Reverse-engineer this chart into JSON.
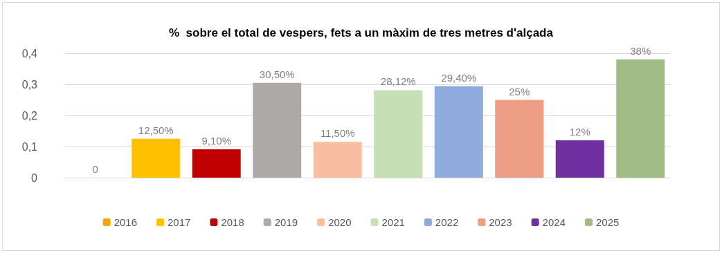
{
  "chart_data": {
    "type": "bar",
    "title": "%  sobre el total de vespers, fets a un màxim de tres metres d'alçada",
    "categories": [
      null,
      null,
      null,
      null,
      null,
      null,
      null,
      null,
      null,
      null
    ],
    "series": [
      {
        "name": "2016",
        "color": "#f4a300",
        "values": [
          0,
          null,
          null,
          null,
          null,
          null,
          null,
          null,
          null,
          null
        ],
        "value_labels": [
          "0",
          null,
          null,
          null,
          null,
          null,
          null,
          null,
          null,
          null
        ]
      },
      {
        "name": "2017",
        "color": "#ffc000",
        "values": [
          null,
          0.125,
          null,
          null,
          null,
          null,
          null,
          null,
          null,
          null
        ],
        "value_labels": [
          null,
          "12,50%",
          null,
          null,
          null,
          null,
          null,
          null,
          null,
          null
        ]
      },
      {
        "name": "2018",
        "color": "#c00000",
        "values": [
          null,
          null,
          0.091,
          null,
          null,
          null,
          null,
          null,
          null,
          null
        ],
        "value_labels": [
          null,
          null,
          "9,10%",
          null,
          null,
          null,
          null,
          null,
          null,
          null
        ]
      },
      {
        "name": "2019",
        "color": "#aeaaaa",
        "values": [
          null,
          null,
          null,
          0.305,
          null,
          null,
          null,
          null,
          null,
          null
        ],
        "value_labels": [
          null,
          null,
          null,
          "30,50%",
          null,
          null,
          null,
          null,
          null,
          null
        ]
      },
      {
        "name": "2020",
        "color": "#f8bfa0",
        "values": [
          null,
          null,
          null,
          null,
          0.115,
          null,
          null,
          null,
          null,
          null
        ],
        "value_labels": [
          null,
          null,
          null,
          null,
          "11,50%",
          null,
          null,
          null,
          null,
          null
        ]
      },
      {
        "name": "2021",
        "color": "#c5e0b4",
        "values": [
          null,
          null,
          null,
          null,
          null,
          0.2812,
          null,
          null,
          null,
          null
        ],
        "value_labels": [
          null,
          null,
          null,
          null,
          null,
          "28,12%",
          null,
          null,
          null,
          null
        ]
      },
      {
        "name": "2022",
        "color": "#8faadc",
        "values": [
          null,
          null,
          null,
          null,
          null,
          null,
          0.294,
          null,
          null,
          null
        ],
        "value_labels": [
          null,
          null,
          null,
          null,
          null,
          null,
          "29,40%",
          null,
          null,
          null
        ]
      },
      {
        "name": "2023",
        "color": "#ed9e84",
        "values": [
          null,
          null,
          null,
          null,
          null,
          null,
          null,
          0.25,
          null,
          null
        ],
        "value_labels": [
          null,
          null,
          null,
          null,
          null,
          null,
          null,
          "25%",
          null,
          null
        ]
      },
      {
        "name": "2024",
        "color": "#7030a0",
        "values": [
          null,
          null,
          null,
          null,
          null,
          null,
          null,
          null,
          0.12,
          null
        ],
        "value_labels": [
          null,
          null,
          null,
          null,
          null,
          null,
          null,
          null,
          "12%",
          null
        ]
      },
      {
        "name": "2025",
        "color": "#9fbb86",
        "values": [
          null,
          null,
          null,
          null,
          null,
          null,
          null,
          null,
          null,
          0.38
        ],
        "value_labels": [
          null,
          null,
          null,
          null,
          null,
          null,
          null,
          null,
          null,
          "38%"
        ]
      }
    ],
    "ylim": [
      0,
      0.4
    ],
    "yticks": [
      0,
      {
        "value": 0.1,
        "label": "0,1"
      },
      {
        "value": 0.2,
        "label": "0,2"
      },
      {
        "value": 0.3,
        "label": "0,3"
      },
      {
        "value": 0.4,
        "label": "0,4"
      }
    ],
    "grid": "y",
    "legend": "bottom"
  }
}
